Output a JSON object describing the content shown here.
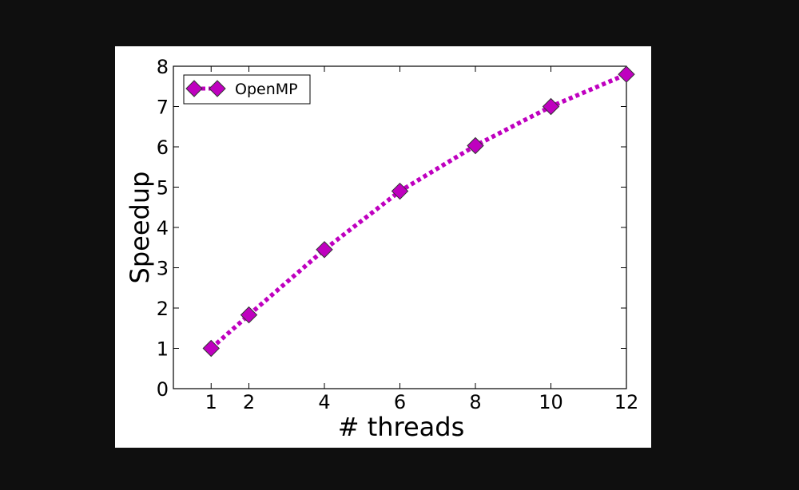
{
  "chart_data": {
    "type": "line",
    "xlabel": "# threads",
    "ylabel": "Speedup",
    "xlim": [
      0,
      12
    ],
    "ylim": [
      0,
      8
    ],
    "x_ticks": [
      1,
      2,
      4,
      6,
      8,
      10,
      12
    ],
    "y_ticks": [
      0,
      1,
      2,
      3,
      4,
      5,
      6,
      7,
      8
    ],
    "grid": false,
    "legend_position": "top-left",
    "series": [
      {
        "name": "OpenMP",
        "color": "#bf00bf",
        "marker": "diamond",
        "line_style": "dotted",
        "x": [
          1,
          2,
          4,
          6,
          8,
          10,
          12
        ],
        "y": [
          1.0,
          1.83,
          3.45,
          4.9,
          6.03,
          7.0,
          7.8
        ]
      }
    ]
  }
}
